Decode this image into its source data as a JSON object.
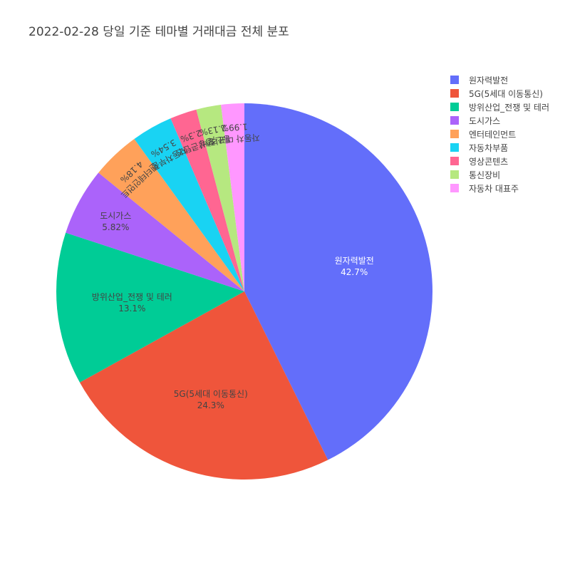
{
  "chart_data": {
    "type": "pie",
    "title": "2022-02-28 당일 기준 테마별 거래대금 전체 분포",
    "slices": [
      {
        "label": "원자력발전",
        "value": 42.7,
        "value_label": "42.7%",
        "color": "#636efa",
        "text_color": "#ffffff"
      },
      {
        "label": "5G(5세대 이동통신)",
        "value": 24.3,
        "value_label": "24.3%",
        "color": "#ef553b",
        "text_color": "#444444"
      },
      {
        "label": "방위산업_전쟁 및 테러",
        "value": 13.1,
        "value_label": "13.1%",
        "color": "#00cc96",
        "text_color": "#444444"
      },
      {
        "label": "도시가스",
        "value": 5.82,
        "value_label": "5.82%",
        "color": "#ab63fa",
        "text_color": "#444444"
      },
      {
        "label": "엔터테인먼트",
        "value": 4.18,
        "value_label": "4.18%",
        "color": "#ffa15a",
        "text_color": "#444444"
      },
      {
        "label": "자동차부품",
        "value": 3.54,
        "value_label": "3.54%",
        "color": "#19d3f3",
        "text_color": "#444444"
      },
      {
        "label": "영상콘텐츠",
        "value": 2.3,
        "value_label": "2.3%",
        "color": "#ff6692",
        "text_color": "#444444"
      },
      {
        "label": "통신장비",
        "value": 2.13,
        "value_label": "2.13%",
        "color": "#b6e880",
        "text_color": "#444444"
      },
      {
        "label": "자동차 대표주",
        "value": 1.99,
        "value_label": "1.99%",
        "color": "#ff97ff",
        "text_color": "#444444"
      }
    ],
    "direction": "clockwise",
    "start": "top",
    "legend_position": "top-right"
  }
}
